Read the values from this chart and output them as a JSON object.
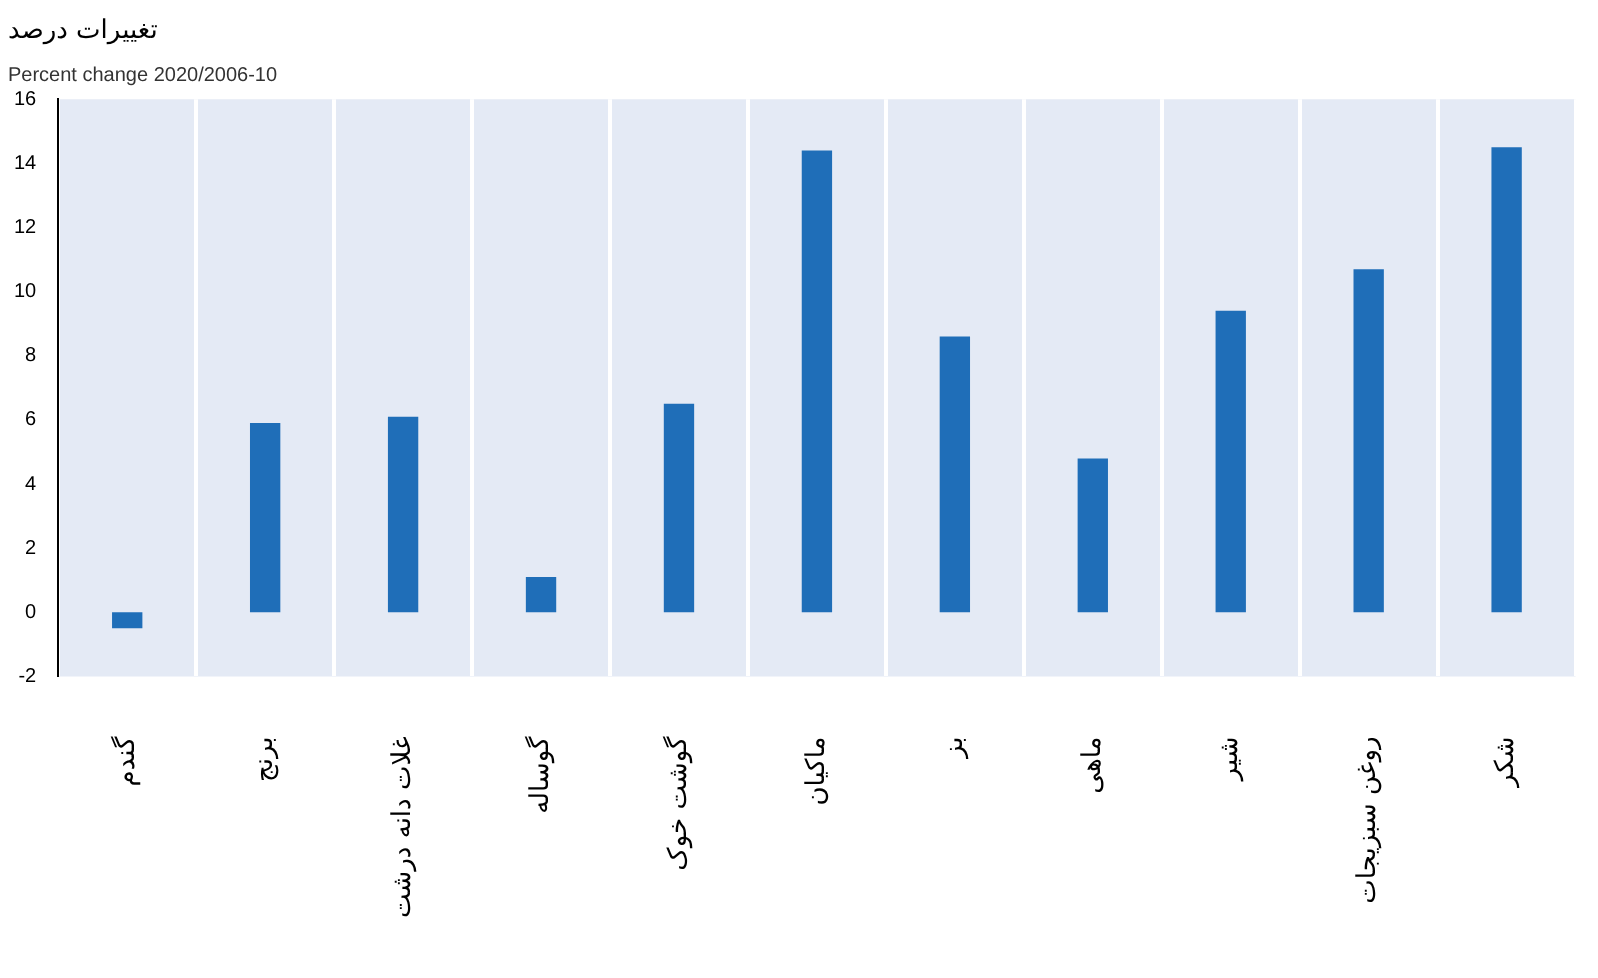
{
  "chart_data": {
    "type": "bar",
    "title": "تغییرات درصد",
    "subtitle": "Percent change 2020/2006-10",
    "categories": [
      "گندم",
      "برنج",
      "غلات دانه درشت",
      "گوساله",
      "گوشت خوک",
      "ماکیان",
      "بز",
      "ماهی",
      "شیر",
      "روغن سبزیجات",
      "شکر"
    ],
    "values": [
      -0.5,
      5.9,
      6.1,
      1.1,
      6.5,
      14.4,
      8.6,
      4.8,
      9.4,
      10.7,
      14.5
    ],
    "color": "#1f6eb8",
    "ylim": [
      -2,
      16
    ],
    "yticks": [
      -2,
      0,
      2,
      4,
      6,
      8,
      10,
      12,
      14,
      16
    ],
    "grid": "x",
    "legend": false
  }
}
